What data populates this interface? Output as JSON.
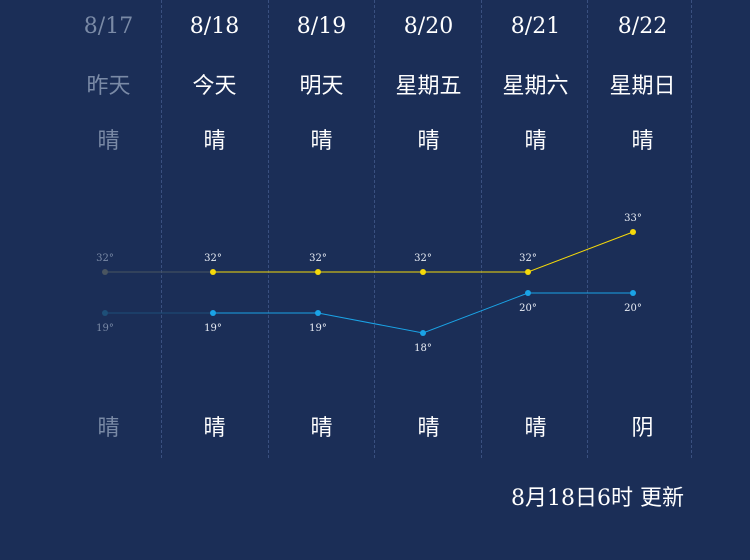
{
  "colors": {
    "background": "#1b2e57",
    "high_line": "#f5d90a",
    "low_line": "#1aa3e6",
    "past_text": "#7a8aa6",
    "text": "#ffffff"
  },
  "days": [
    {
      "date": "8/17",
      "label": "昨天",
      "day_condition": "晴",
      "night_condition": "晴",
      "high": "32°",
      "low": "19°",
      "past": true
    },
    {
      "date": "8/18",
      "label": "今天",
      "day_condition": "晴",
      "night_condition": "晴",
      "high": "32°",
      "low": "19°",
      "past": false
    },
    {
      "date": "8/19",
      "label": "明天",
      "day_condition": "晴",
      "night_condition": "晴",
      "high": "32°",
      "low": "19°",
      "past": false
    },
    {
      "date": "8/20",
      "label": "星期五",
      "day_condition": "晴",
      "night_condition": "晴",
      "high": "32°",
      "low": "18°",
      "past": false
    },
    {
      "date": "8/21",
      "label": "星期六",
      "day_condition": "晴",
      "night_condition": "晴",
      "high": "32°",
      "low": "20°",
      "past": false
    },
    {
      "date": "8/22",
      "label": "星期日",
      "day_condition": "晴",
      "night_condition": "阴",
      "high": "33°",
      "low": "20°",
      "past": false
    }
  ],
  "chart_data": {
    "type": "line",
    "categories": [
      "8/17",
      "8/18",
      "8/19",
      "8/20",
      "8/21",
      "8/22"
    ],
    "series": [
      {
        "values": [
          32,
          32,
          32,
          32,
          32,
          33
        ]
      },
      {
        "values": [
          19,
          19,
          19,
          18,
          20,
          20
        ]
      }
    ]
  },
  "update_time": "8月18日6时 更新"
}
